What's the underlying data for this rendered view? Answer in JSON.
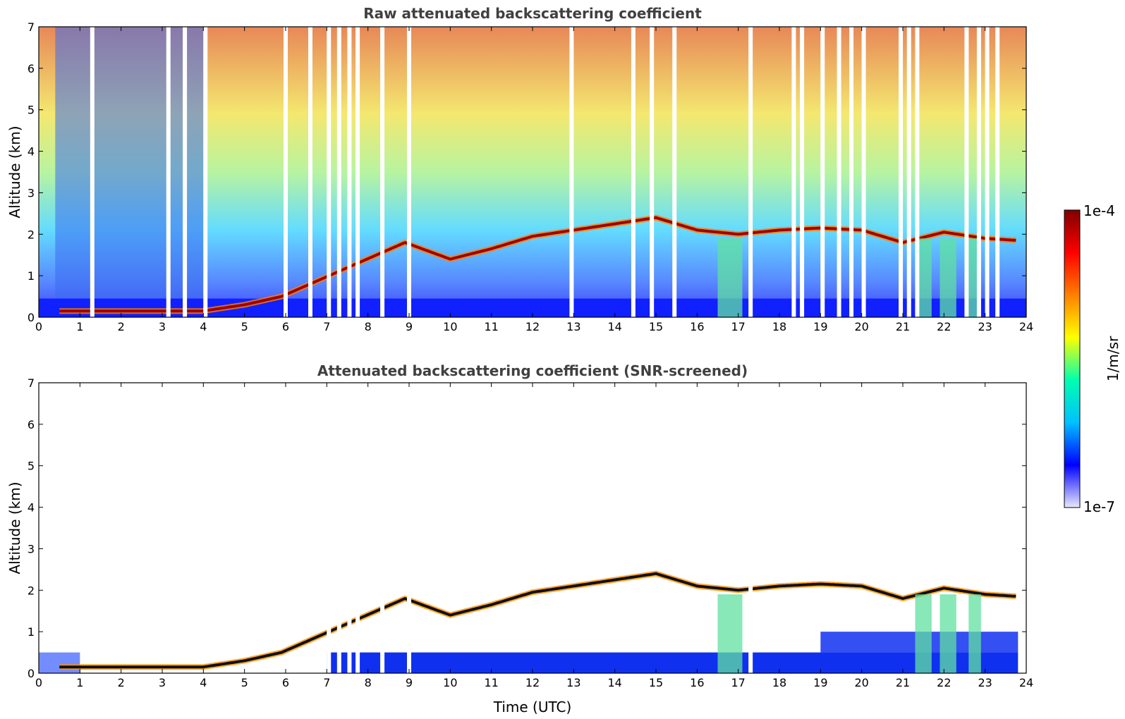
{
  "chart_data": [
    {
      "type": "heatmap",
      "title": "Raw attenuated backscattering coefficient",
      "xlabel": "",
      "ylabel": "Altitude (km)",
      "xlim": [
        0,
        24
      ],
      "ylim": [
        0,
        7
      ],
      "xticks": [
        0,
        1,
        2,
        3,
        4,
        5,
        6,
        7,
        8,
        9,
        10,
        11,
        12,
        13,
        14,
        15,
        16,
        17,
        18,
        19,
        20,
        21,
        22,
        23,
        24
      ],
      "yticks": [
        0,
        1,
        2,
        3,
        4,
        5,
        6,
        7
      ],
      "data_gaps_hours": [
        1.3,
        3.15,
        3.55,
        4.05,
        6.0,
        6.6,
        7.05,
        7.3,
        7.55,
        7.75,
        8.35,
        9.0,
        12.95,
        14.45,
        14.9,
        15.45,
        17.3,
        18.35,
        18.55,
        19.05,
        19.45,
        19.75,
        20.05,
        20.95,
        21.15,
        21.35,
        22.55,
        22.85,
        23.05,
        23.3
      ],
      "cloud_layer_km": [
        {
          "t": 0.5,
          "z": 0.15
        },
        {
          "t": 4.0,
          "z": 0.15
        },
        {
          "t": 5.0,
          "z": 0.3
        },
        {
          "t": 5.9,
          "z": 0.5
        },
        {
          "t": 8.9,
          "z": 1.8
        },
        {
          "t": 10.0,
          "z": 1.4
        },
        {
          "t": 11.0,
          "z": 1.65
        },
        {
          "t": 12.0,
          "z": 1.95
        },
        {
          "t": 13.0,
          "z": 2.1
        },
        {
          "t": 14.0,
          "z": 2.25
        },
        {
          "t": 15.0,
          "z": 2.4
        },
        {
          "t": 16.0,
          "z": 2.1
        },
        {
          "t": 17.0,
          "z": 2.0
        },
        {
          "t": 18.0,
          "z": 2.1
        },
        {
          "t": 19.0,
          "z": 2.15
        },
        {
          "t": 20.0,
          "z": 2.1
        },
        {
          "t": 21.0,
          "z": 1.8
        },
        {
          "t": 22.0,
          "z": 2.05
        },
        {
          "t": 23.0,
          "z": 1.9
        },
        {
          "t": 23.8,
          "z": 1.85
        }
      ]
    },
    {
      "type": "heatmap",
      "title": "Attenuated backscattering coefficient (SNR-screened)",
      "xlabel": "Time (UTC)",
      "ylabel": "Altitude (km)",
      "xlim": [
        0,
        24
      ],
      "ylim": [
        0,
        7
      ],
      "xticks": [
        0,
        1,
        2,
        3,
        4,
        5,
        6,
        7,
        8,
        9,
        10,
        11,
        12,
        13,
        14,
        15,
        16,
        17,
        18,
        19,
        20,
        21,
        22,
        23,
        24
      ],
      "yticks": [
        0,
        1,
        2,
        3,
        4,
        5,
        6,
        7
      ],
      "data_gaps_hours": [
        7.05,
        7.3,
        7.55,
        7.75,
        8.35,
        9.0,
        17.3
      ],
      "cloud_layer_km": [
        {
          "t": 0.5,
          "z": 0.15
        },
        {
          "t": 4.0,
          "z": 0.15
        },
        {
          "t": 5.0,
          "z": 0.3
        },
        {
          "t": 5.9,
          "z": 0.5
        },
        {
          "t": 8.9,
          "z": 1.8
        },
        {
          "t": 10.0,
          "z": 1.4
        },
        {
          "t": 11.0,
          "z": 1.65
        },
        {
          "t": 12.0,
          "z": 1.95
        },
        {
          "t": 13.0,
          "z": 2.1
        },
        {
          "t": 14.0,
          "z": 2.25
        },
        {
          "t": 15.0,
          "z": 2.4
        },
        {
          "t": 16.0,
          "z": 2.1
        },
        {
          "t": 17.0,
          "z": 2.0
        },
        {
          "t": 18.0,
          "z": 2.1
        },
        {
          "t": 19.0,
          "z": 2.15
        },
        {
          "t": 20.0,
          "z": 2.1
        },
        {
          "t": 21.0,
          "z": 1.8
        },
        {
          "t": 22.0,
          "z": 2.05
        },
        {
          "t": 23.0,
          "z": 1.9
        },
        {
          "t": 23.8,
          "z": 1.85
        }
      ]
    }
  ],
  "colorbar": {
    "label": "1/m/sr",
    "max_label": "1e-4",
    "min_label": "1e-7",
    "scale": "log",
    "range": [
      1e-07,
      0.0001
    ],
    "colors": [
      "#e8e8ff",
      "#0000ff",
      "#00c0ff",
      "#00ffb0",
      "#ffff00",
      "#ff8000",
      "#ff0000",
      "#800000"
    ]
  }
}
